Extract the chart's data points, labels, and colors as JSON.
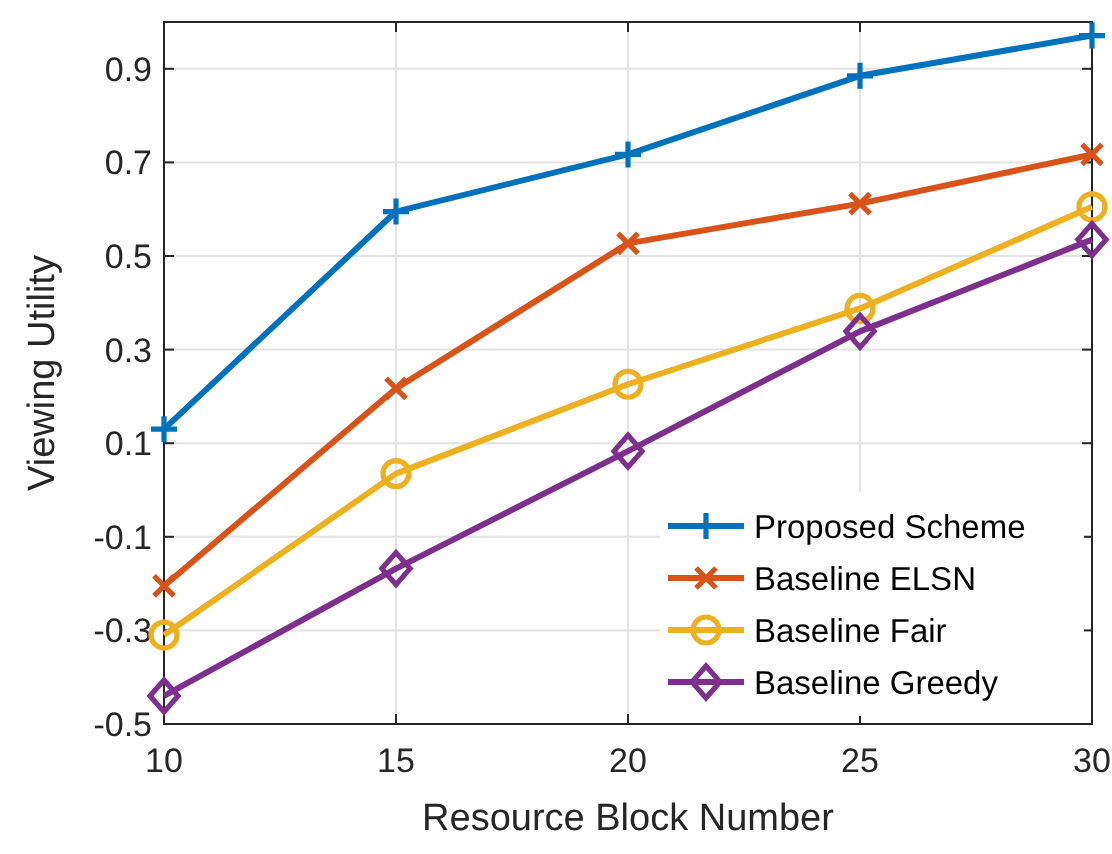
{
  "chart_data": {
    "type": "line",
    "xlabel": "Resource Block Number",
    "ylabel": "Viewing Utility",
    "x": [
      10,
      15,
      20,
      25,
      30
    ],
    "xlim": [
      10,
      30
    ],
    "xticks": [
      10,
      15,
      20,
      25,
      30
    ],
    "ylim": [
      -0.5,
      1
    ],
    "yticks": [
      -0.5,
      -0.3,
      -0.1,
      0.1,
      0.3,
      0.5,
      0.7,
      0.9
    ],
    "grid": true,
    "legend": "bottom right",
    "line_style": "solid",
    "series": [
      {
        "name": "Proposed Scheme",
        "color": "#0072bd",
        "marker": "plus",
        "values": [
          0.13,
          0.595,
          0.717,
          0.885,
          0.971
        ]
      },
      {
        "name": "Baseline ELSN",
        "color": "#d95319",
        "marker": "cross",
        "values": [
          -0.205,
          0.217,
          0.527,
          0.612,
          0.717
        ]
      },
      {
        "name": "Baseline Fair",
        "color": "#edb120",
        "marker": "circle",
        "values": [
          -0.31,
          0.035,
          0.226,
          0.388,
          0.605
        ]
      },
      {
        "name": "Baseline Greedy",
        "color": "#7e2f8e",
        "marker": "diamond",
        "values": [
          -0.44,
          -0.168,
          0.083,
          0.339,
          0.535
        ]
      }
    ]
  }
}
